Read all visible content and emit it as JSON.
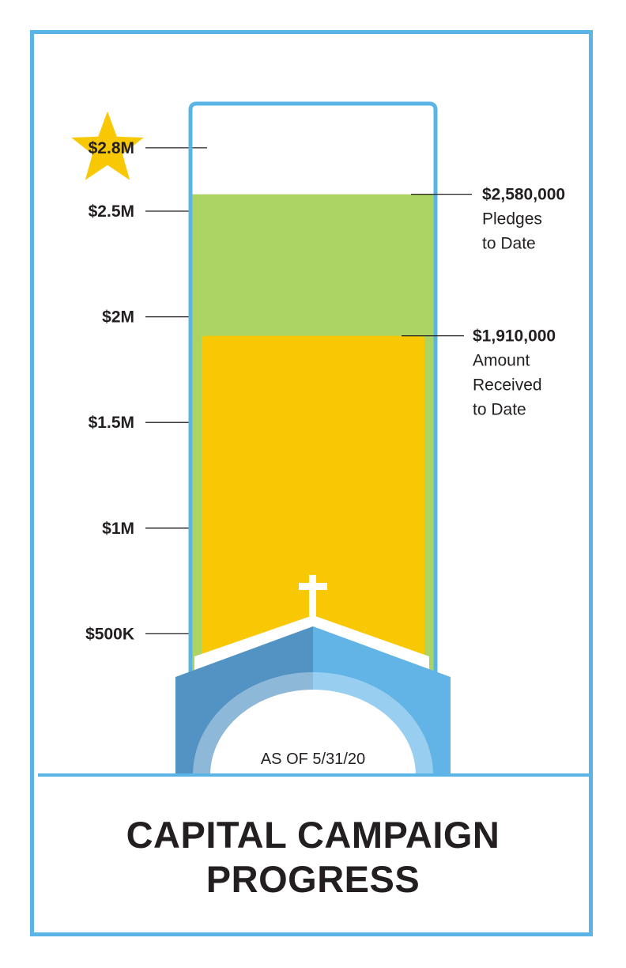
{
  "colors": {
    "frame": "#5ab4e6",
    "pledged_fill": "#acd463",
    "received_fill": "#f8c805",
    "star": "#f8c805",
    "church_dark": "#5293c3",
    "church_light": "#62b4e6",
    "text": "#231f20"
  },
  "icons": {
    "goal_marker": "star-icon",
    "church": "church-icon",
    "cross": "cross-icon"
  },
  "title": {
    "line1": "CAPITAL CAMPAIGN",
    "line2": "PROGRESS"
  },
  "as_of": "AS OF 5/31/20",
  "chart_data": {
    "type": "bar",
    "orientation": "vertical thermometer",
    "ylim": [
      0,
      2800000
    ],
    "ticks": [
      {
        "value": 500000,
        "label": "$500K"
      },
      {
        "value": 1000000,
        "label": "$1M"
      },
      {
        "value": 1500000,
        "label": "$1.5M"
      },
      {
        "value": 2000000,
        "label": "$2M"
      },
      {
        "value": 2500000,
        "label": "$2.5M"
      },
      {
        "value": 2800000,
        "label": "$2.8M"
      }
    ],
    "goal": {
      "value": 2800000,
      "label": "$2.8M"
    },
    "series": [
      {
        "value": 2580000,
        "value_label": "$2,580,000",
        "caption": [
          "Pledges",
          "to Date"
        ]
      },
      {
        "value": 1910000,
        "value_label": "$1,910,000",
        "caption": [
          "Amount",
          "Received",
          "to Date"
        ]
      }
    ]
  }
}
